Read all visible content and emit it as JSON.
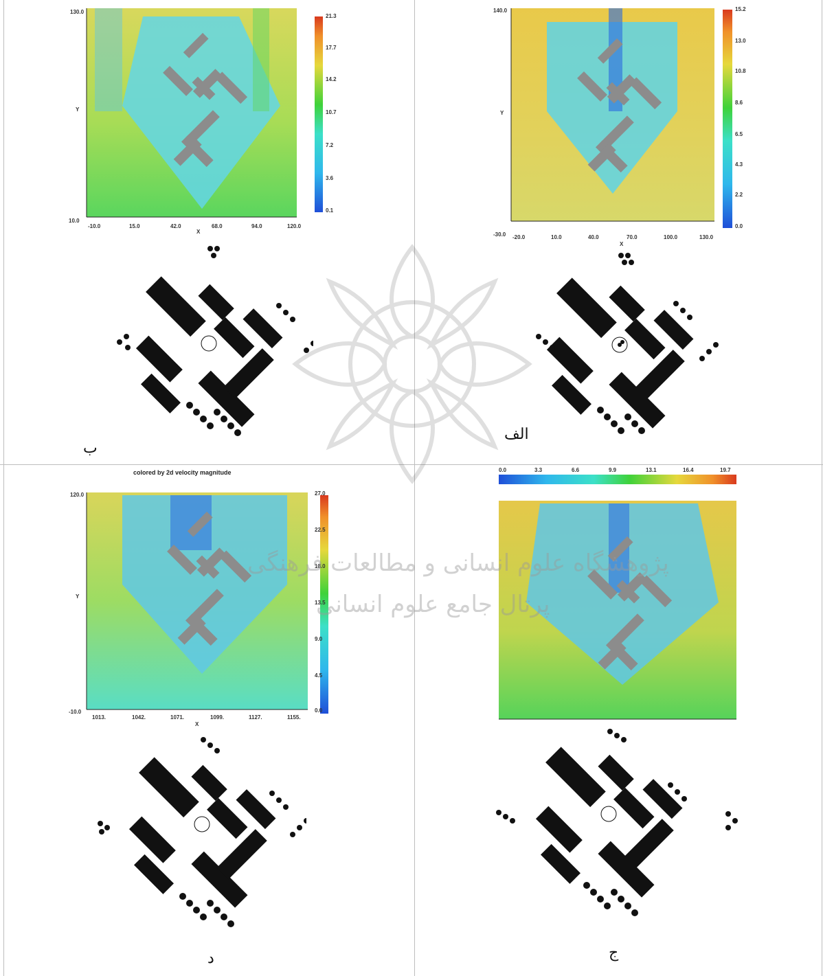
{
  "panels": {
    "alef": {
      "label": "الف",
      "axis": {
        "y_label": "Y",
        "x_label": "X",
        "y_top": "140.0",
        "y_bottom": "-30.0",
        "x_ticks": [
          "-20.0",
          "10.0",
          "40.0",
          "70.0",
          "100.0",
          "130.0"
        ],
        "colorbar": [
          "15.2",
          "13.0",
          "10.8",
          "8.6",
          "6.5",
          "4.3",
          "2.2",
          "0.0"
        ]
      }
    },
    "be": {
      "label": "ب",
      "axis": {
        "y_label": "Y",
        "x_label": "X",
        "y_top": "130.0",
        "y_bottom": "10.0",
        "x_ticks": [
          "-10.0",
          "15.0",
          "42.0",
          "68.0",
          "94.0",
          "120.0"
        ],
        "colorbar": [
          "21.3",
          "17.7",
          "14.2",
          "10.7",
          "7.2",
          "3.6",
          "0.1"
        ]
      }
    },
    "jim": {
      "label": "ج",
      "axis": {
        "colorbar": [
          "0.0",
          "3.3",
          "6.6",
          "9.9",
          "13.1",
          "16.4",
          "19.7"
        ]
      }
    },
    "dal": {
      "label": "د",
      "axis": {
        "title": "colored by 2d velocity magnitude",
        "y_label": "Y",
        "x_label": "X",
        "y_top": "120.0",
        "y_bottom": "-10.0",
        "x_ticks": [
          "1013.",
          "1042.",
          "1071.",
          "1099.",
          "1127.",
          "1155."
        ],
        "colorbar": [
          "27.0",
          "22.5",
          "18.0",
          "13.5",
          "9.0",
          "4.5",
          "0.0"
        ]
      }
    }
  },
  "watermark": {
    "line1": "پژوهشگاه علوم انسانی و مطالعات فرهنگی",
    "line2": "پرتال جامع علوم انسانی"
  },
  "colors": {
    "building": "#111111",
    "building_gray": "#4a4a4a",
    "cfd_building": "#8c8c8c",
    "blue": "#1f6fd1",
    "cyan": "#3fd0e6",
    "green": "#3ccf3c",
    "yellow": "#e6d83c",
    "orange": "#f08a2a",
    "red": "#d93a1e"
  }
}
